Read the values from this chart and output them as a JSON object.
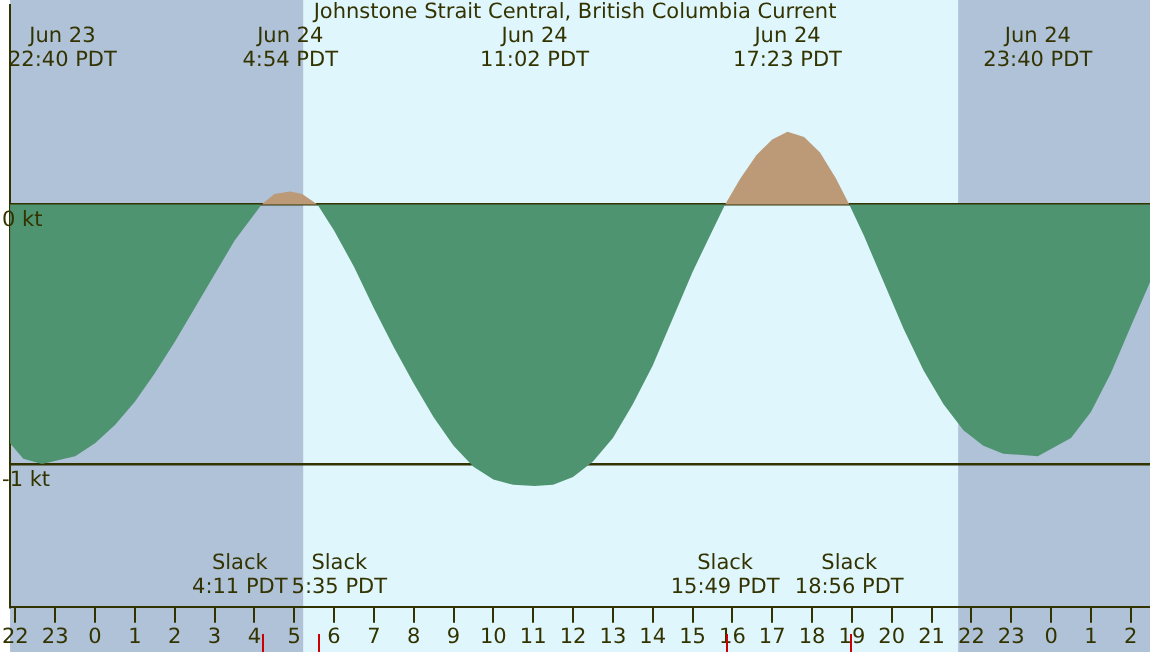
{
  "chart_data": {
    "type": "area",
    "title": "Johnstone Strait Central, British Columbia Current",
    "xlim": [
      "--06-23T21:52",
      "--06-25T02:29"
    ],
    "xticks": [
      {
        "value": "--06-23T22:00",
        "label": "22"
      },
      {
        "value": "--06-23T23:00",
        "label": "23"
      },
      {
        "value": "--06-24T00:00",
        "label": "0"
      },
      {
        "value": "--06-24T01:00",
        "label": "1"
      },
      {
        "value": "--06-24T02:00",
        "label": "2"
      },
      {
        "value": "--06-24T03:00",
        "label": "3"
      },
      {
        "value": "--06-24T04:00",
        "label": "4"
      },
      {
        "value": "--06-24T05:00",
        "label": "5"
      },
      {
        "value": "--06-24T06:00",
        "label": "6"
      },
      {
        "value": "--06-24T07:00",
        "label": "7"
      },
      {
        "value": "--06-24T08:00",
        "label": "8"
      },
      {
        "value": "--06-24T09:00",
        "label": "9"
      },
      {
        "value": "--06-24T10:00",
        "label": "10"
      },
      {
        "value": "--06-24T11:00",
        "label": "11"
      },
      {
        "value": "--06-24T12:00",
        "label": "12"
      },
      {
        "value": "--06-24T13:00",
        "label": "13"
      },
      {
        "value": "--06-24T14:00",
        "label": "14"
      },
      {
        "value": "--06-24T15:00",
        "label": "15"
      },
      {
        "value": "--06-24T16:00",
        "label": "16"
      },
      {
        "value": "--06-24T17:00",
        "label": "17"
      },
      {
        "value": "--06-24T18:00",
        "label": "18"
      },
      {
        "value": "--06-24T19:00",
        "label": "19"
      },
      {
        "value": "--06-24T20:00",
        "label": "20"
      },
      {
        "value": "--06-24T21:00",
        "label": "21"
      },
      {
        "value": "--06-24T22:00",
        "label": "22"
      },
      {
        "value": "--06-24T23:00",
        "label": "23"
      },
      {
        "value": "--06-25T00:00",
        "label": "0"
      },
      {
        "value": "--06-25T01:00",
        "label": "1"
      },
      {
        "value": "--06-25T02:00",
        "label": "2"
      }
    ],
    "ylim": [
      -1.55,
      0.77
    ],
    "yticks": [
      {
        "value": -1,
        "label": "-1 kt"
      },
      {
        "value": 0,
        "label": "0 kt"
      }
    ],
    "grid": "y",
    "legend": false,
    "bands": [
      {
        "axis": "x",
        "from": "--06-23T21:52",
        "to": "--06-24T05:14",
        "color": "#afc2d8"
      },
      {
        "axis": "x",
        "from": "--06-24T05:14",
        "to": "--06-24T21:40",
        "color": "#dff6fd"
      },
      {
        "axis": "x",
        "from": "--06-24T21:40",
        "to": "--06-25T02:29",
        "color": "#afc2d8"
      }
    ],
    "series": [
      {
        "color": "#4f9470",
        "x": [
          "--06-23T21:52",
          "--06-23T22:12",
          "--06-23T22:40",
          "--06-23T23:30",
          "--06-24T00:00",
          "--06-24T00:30",
          "--06-24T01:00",
          "--06-24T01:30",
          "--06-24T02:00",
          "--06-24T02:30",
          "--06-24T03:00",
          "--06-24T03:30",
          "--06-24T04:11"
        ],
        "values": [
          -0.92,
          -0.98,
          -1.0,
          -0.97,
          -0.92,
          -0.85,
          -0.76,
          -0.65,
          -0.53,
          -0.4,
          -0.27,
          -0.14,
          0
        ]
      },
      {
        "color": "#bc9a78",
        "x": [
          "--06-24T04:11",
          "--06-24T04:30",
          "--06-24T04:54",
          "--06-24T05:12",
          "--06-24T05:35"
        ],
        "values": [
          0,
          0.04,
          0.05,
          0.04,
          0
        ]
      },
      {
        "color": "#4f9470",
        "x": [
          "--06-24T05:35",
          "--06-24T06:00",
          "--06-24T06:30",
          "--06-24T07:00",
          "--06-24T07:30",
          "--06-24T08:00",
          "--06-24T08:30",
          "--06-24T09:00",
          "--06-24T09:30",
          "--06-24T10:00",
          "--06-24T10:30",
          "--06-24T11:02",
          "--06-24T11:30",
          "--06-24T12:00",
          "--06-24T12:30",
          "--06-24T13:00",
          "--06-24T13:30",
          "--06-24T14:00",
          "--06-24T14:30",
          "--06-24T15:00",
          "--06-24T15:30",
          "--06-24T15:49"
        ],
        "values": [
          0,
          -0.1,
          -0.24,
          -0.4,
          -0.55,
          -0.69,
          -0.82,
          -0.93,
          -1.01,
          -1.06,
          -1.08,
          -1.085,
          -1.08,
          -1.05,
          -0.99,
          -0.9,
          -0.77,
          -0.62,
          -0.44,
          -0.26,
          -0.1,
          0
        ]
      },
      {
        "color": "#bc9a78",
        "x": [
          "--06-24T15:49",
          "--06-24T16:12",
          "--06-24T16:36",
          "--06-24T17:00",
          "--06-24T17:23",
          "--06-24T17:48",
          "--06-24T18:12",
          "--06-24T18:36",
          "--06-24T18:56"
        ],
        "values": [
          0,
          0.1,
          0.19,
          0.25,
          0.28,
          0.26,
          0.2,
          0.1,
          0
        ]
      },
      {
        "color": "#4f9470",
        "x": [
          "--06-24T18:56",
          "--06-24T19:18",
          "--06-24T19:48",
          "--06-24T20:18",
          "--06-24T20:48",
          "--06-24T21:18",
          "--06-24T21:48",
          "--06-24T22:18",
          "--06-24T22:48",
          "--06-24T23:40",
          "--06-25T00:30",
          "--06-25T01:00",
          "--06-25T01:30",
          "--06-25T02:00",
          "--06-25T02:29"
        ],
        "values": [
          0,
          -0.12,
          -0.3,
          -0.48,
          -0.64,
          -0.77,
          -0.87,
          -0.93,
          -0.96,
          -0.97,
          -0.9,
          -0.8,
          -0.65,
          -0.47,
          -0.3
        ]
      }
    ],
    "annotations": [
      "Jun 23\n22:40 PDT",
      "Jun 24\n4:54 PDT",
      "Jun 24\n11:02 PDT",
      "Jun 24\n17:23 PDT",
      "Jun 24\n23:40 PDT",
      "Slack\n4:11 PDT",
      "Slack\n5:35 PDT",
      "Slack\n15:49 PDT",
      "Slack\n18:56 PDT"
    ]
  }
}
